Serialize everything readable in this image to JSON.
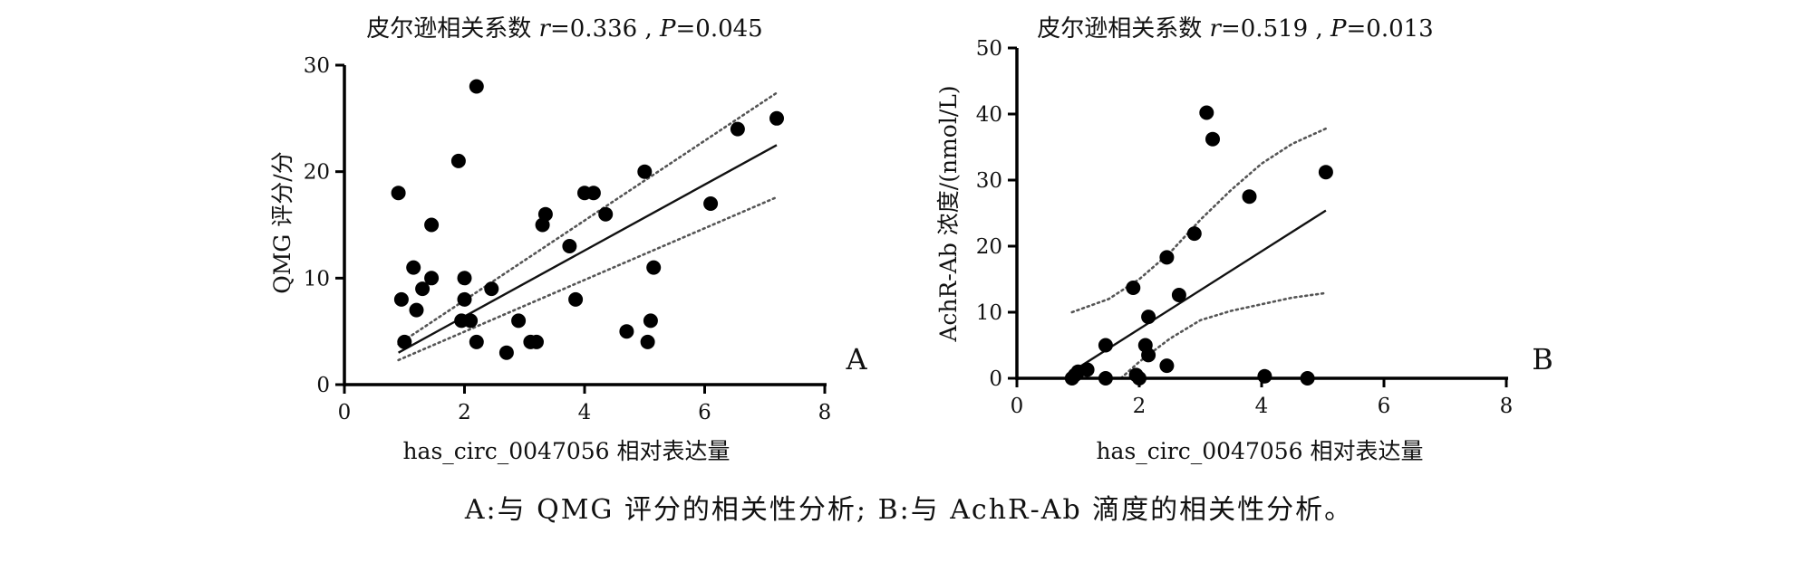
{
  "caption": "A:与 QMG 评分的相关性分析; B:与 AchR-Ab 滴度的相关性分析。",
  "chart_data": [
    {
      "type": "scatter",
      "panel_label": "A",
      "title_text": "皮尔逊相关系数 ",
      "title_r_symbol": "r",
      "title_r_value": "=0.336 , ",
      "title_p_symbol": "P",
      "title_p_value": "=0.045",
      "xlabel": "has_circ_0047056 相对表达量",
      "ylabel": "QMG 评分/分",
      "xlim": [
        0,
        8
      ],
      "ylim": [
        0,
        30
      ],
      "xticks": [
        "0",
        "2",
        "4",
        "6",
        "8"
      ],
      "yticks": [
        "0",
        "10",
        "20",
        "30"
      ],
      "fit_line": [
        [
          0.9,
          3.0
        ],
        [
          7.2,
          22.5
        ]
      ],
      "ci_upper": [
        [
          0.9,
          3.8
        ],
        [
          7.2,
          27.4
        ]
      ],
      "ci_lower": [
        [
          0.9,
          2.3
        ],
        [
          7.2,
          17.6
        ]
      ],
      "points": [
        [
          0.9,
          18
        ],
        [
          0.95,
          8
        ],
        [
          1.0,
          4
        ],
        [
          1.15,
          11
        ],
        [
          1.2,
          7
        ],
        [
          1.3,
          9
        ],
        [
          1.45,
          15
        ],
        [
          1.45,
          10
        ],
        [
          1.9,
          21
        ],
        [
          1.95,
          6
        ],
        [
          2.0,
          10
        ],
        [
          2.0,
          8
        ],
        [
          2.1,
          6
        ],
        [
          2.2,
          28
        ],
        [
          2.2,
          4
        ],
        [
          2.45,
          9
        ],
        [
          2.7,
          3
        ],
        [
          2.9,
          6
        ],
        [
          3.1,
          4
        ],
        [
          3.2,
          4
        ],
        [
          3.3,
          15
        ],
        [
          3.35,
          16
        ],
        [
          3.75,
          13
        ],
        [
          3.85,
          8
        ],
        [
          4.0,
          18
        ],
        [
          4.15,
          18
        ],
        [
          4.35,
          16
        ],
        [
          4.7,
          5
        ],
        [
          5.0,
          20
        ],
        [
          5.05,
          4
        ],
        [
          5.1,
          6
        ],
        [
          5.15,
          11
        ],
        [
          6.1,
          17
        ],
        [
          6.55,
          24
        ],
        [
          7.2,
          25
        ]
      ]
    },
    {
      "type": "scatter",
      "panel_label": "B",
      "title_text": "皮尔逊相关系数 ",
      "title_r_symbol": "r",
      "title_r_value": "=0.519 , ",
      "title_p_symbol": "P",
      "title_p_value": "=0.013",
      "xlabel": "has_circ_0047056 相对表达量",
      "ylabel": "AchR-Ab 浓度/(nmol/L)",
      "xlim": [
        0,
        8
      ],
      "ylim": [
        0,
        50
      ],
      "xticks": [
        "0",
        "2",
        "4",
        "6",
        "8"
      ],
      "yticks": [
        "0",
        "10",
        "20",
        "30",
        "40",
        "50"
      ],
      "fit_line": [
        [
          0.9,
          1.0
        ],
        [
          5.05,
          25.4
        ]
      ],
      "ci_upper": [
        [
          0.9,
          10
        ],
        [
          1.5,
          12
        ],
        [
          2.0,
          15
        ],
        [
          2.5,
          19
        ],
        [
          3.0,
          24
        ],
        [
          3.5,
          28.5
        ],
        [
          4.0,
          32.5
        ],
        [
          4.5,
          35.5
        ],
        [
          5.05,
          37.8
        ]
      ],
      "ci_lower": [
        [
          1.7,
          0
        ],
        [
          2.0,
          2.5
        ],
        [
          2.5,
          6
        ],
        [
          3.0,
          8.8
        ],
        [
          3.5,
          10.2
        ],
        [
          4.0,
          11.2
        ],
        [
          4.5,
          12.2
        ],
        [
          5.05,
          12.9
        ]
      ],
      "points": [
        [
          0.9,
          0
        ],
        [
          0.95,
          0.5
        ],
        [
          1.0,
          1
        ],
        [
          1.15,
          1.3
        ],
        [
          1.45,
          5
        ],
        [
          1.45,
          0
        ],
        [
          1.9,
          13.7
        ],
        [
          1.95,
          0.5
        ],
        [
          2.0,
          0
        ],
        [
          2.1,
          5
        ],
        [
          2.15,
          9.3
        ],
        [
          2.15,
          3.5
        ],
        [
          2.45,
          18.3
        ],
        [
          2.45,
          1.9
        ],
        [
          2.65,
          12.6
        ],
        [
          2.9,
          21.9
        ],
        [
          3.1,
          40.2
        ],
        [
          3.2,
          36.2
        ],
        [
          3.8,
          27.5
        ],
        [
          4.05,
          0.3
        ],
        [
          4.75,
          0
        ],
        [
          5.05,
          31.2
        ]
      ]
    }
  ]
}
